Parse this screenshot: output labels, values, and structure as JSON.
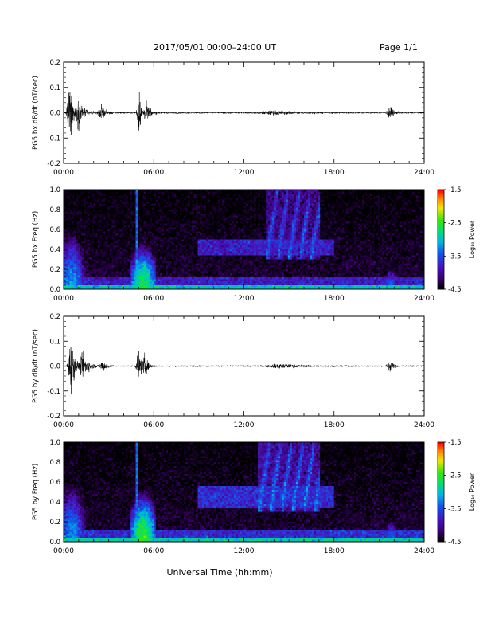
{
  "header": {
    "title": "2017/05/01  00:00–24:00 UT",
    "page": "Page 1/1"
  },
  "colors": {
    "background": "#ffffff",
    "trace": "#000000",
    "spectrogram_floor": "#1b0a3a"
  },
  "colorbar": {
    "label": "Log₁₀ Power",
    "ticks": [
      "-1.5",
      "-2.5",
      "-3.5",
      "-4.5"
    ],
    "range": [
      -4.5,
      -1.5
    ]
  },
  "chart_data": [
    {
      "type": "line",
      "ylabel": "PG5 bx dB/dt (nT/sec)",
      "xlabel": "",
      "xlim_hours": [
        0,
        24
      ],
      "x_ticks": [
        "00:00",
        "06:00",
        "12:00",
        "18:00",
        "24:00"
      ],
      "ylim": [
        -0.2,
        0.2
      ],
      "y_ticks": [
        "0.2",
        "0.1",
        "0.0",
        "-0.1",
        "-0.2"
      ],
      "baseline_amplitude": 0.006,
      "bursts": [
        {
          "center_h": 0.4,
          "width_h": 0.35,
          "amplitude": 0.2
        },
        {
          "center_h": 1.0,
          "width_h": 0.5,
          "amplitude": 0.09
        },
        {
          "center_h": 2.5,
          "width_h": 0.4,
          "amplitude": 0.05
        },
        {
          "center_h": 5.0,
          "width_h": 0.25,
          "amplitude": 0.17
        },
        {
          "center_h": 5.5,
          "width_h": 0.4,
          "amplitude": 0.06
        },
        {
          "center_h": 14.0,
          "width_h": 1.8,
          "amplitude": 0.012
        },
        {
          "center_h": 21.7,
          "width_h": 0.35,
          "amplitude": 0.04
        }
      ]
    },
    {
      "type": "heatmap",
      "ylabel": "PG5 bx Freq (Hz)",
      "xlabel": "",
      "xlim_hours": [
        0,
        24
      ],
      "x_ticks": [
        "00:00",
        "06:00",
        "12:00",
        "18:00",
        "24:00"
      ],
      "ylim": [
        0.0,
        1.0
      ],
      "y_ticks": [
        "1.0",
        "0.8",
        "0.6",
        "0.4",
        "0.2",
        "0.0"
      ],
      "value_range": [
        -4.5,
        -1.5
      ],
      "features": [
        {
          "kind": "low_frequency_band",
          "t_range_h": [
            0,
            24
          ],
          "f_max": 0.05,
          "log_power": -3.0
        },
        {
          "kind": "vertical_stripe",
          "center_h": 4.85,
          "width_h": 0.12,
          "log_power": -3.4
        },
        {
          "kind": "broadband_burst",
          "center_h": 5.3,
          "width_h": 0.7,
          "f_max": 0.2,
          "log_power": -2.6
        },
        {
          "kind": "early_burst",
          "center_h": 0.5,
          "width_h": 0.8,
          "f_max": 0.3,
          "log_power": -3.2
        },
        {
          "kind": "pc1_rising_tone",
          "t_range_h": [
            13.5,
            17.0
          ],
          "f_range": [
            0.3,
            1.0
          ],
          "log_power": -3.6
        },
        {
          "kind": "diffuse_band",
          "t_range_h": [
            9.0,
            18.0
          ],
          "f_range": [
            0.35,
            0.5
          ],
          "log_power": -3.8
        },
        {
          "kind": "late_burst",
          "center_h": 21.8,
          "width_h": 0.4,
          "f_max": 0.12,
          "log_power": -3.4
        }
      ]
    },
    {
      "type": "line",
      "ylabel": "PG5 by dB/dt (nT/sec)",
      "xlabel": "",
      "xlim_hours": [
        0,
        24
      ],
      "x_ticks": [
        "00:00",
        "06:00",
        "12:00",
        "18:00",
        "24:00"
      ],
      "ylim": [
        -0.2,
        0.2
      ],
      "y_ticks": [
        "0.2",
        "0.1",
        "0.0",
        "-0.1",
        "-0.2"
      ],
      "baseline_amplitude": 0.005,
      "bursts": [
        {
          "center_h": 0.5,
          "width_h": 0.4,
          "amplitude": 0.18
        },
        {
          "center_h": 1.3,
          "width_h": 0.6,
          "amplitude": 0.08
        },
        {
          "center_h": 2.6,
          "width_h": 0.4,
          "amplitude": 0.04
        },
        {
          "center_h": 5.0,
          "width_h": 0.3,
          "amplitude": 0.12
        },
        {
          "center_h": 5.4,
          "width_h": 0.3,
          "amplitude": 0.08
        },
        {
          "center_h": 14.5,
          "width_h": 2.0,
          "amplitude": 0.012
        },
        {
          "center_h": 21.7,
          "width_h": 0.35,
          "amplitude": 0.04
        }
      ]
    },
    {
      "type": "heatmap",
      "ylabel": "PG5 by Freq (Hz)",
      "xlabel": "Universal Time (hh:mm)",
      "xlim_hours": [
        0,
        24
      ],
      "x_ticks": [
        "00:00",
        "06:00",
        "12:00",
        "18:00",
        "24:00"
      ],
      "ylim": [
        0.0,
        1.0
      ],
      "y_ticks": [
        "1.0",
        "0.8",
        "0.6",
        "0.4",
        "0.2",
        "0.0"
      ],
      "value_range": [
        -4.5,
        -1.5
      ],
      "features": [
        {
          "kind": "low_frequency_band",
          "t_range_h": [
            0,
            24
          ],
          "f_max": 0.05,
          "log_power": -2.9
        },
        {
          "kind": "vertical_stripe",
          "center_h": 4.85,
          "width_h": 0.12,
          "log_power": -3.4
        },
        {
          "kind": "broadband_burst",
          "center_h": 5.3,
          "width_h": 0.7,
          "f_max": 0.22,
          "log_power": -2.5
        },
        {
          "kind": "early_burst",
          "center_h": 0.5,
          "width_h": 0.8,
          "f_max": 0.3,
          "log_power": -3.2
        },
        {
          "kind": "pc1_rising_tone",
          "t_range_h": [
            13.0,
            17.0
          ],
          "f_range": [
            0.3,
            1.0
          ],
          "log_power": -3.5
        },
        {
          "kind": "diffuse_band",
          "t_range_h": [
            9.0,
            18.0
          ],
          "f_range": [
            0.35,
            0.55
          ],
          "log_power": -3.7
        },
        {
          "kind": "late_burst",
          "center_h": 21.8,
          "width_h": 0.4,
          "f_max": 0.12,
          "log_power": -3.4
        }
      ]
    }
  ]
}
